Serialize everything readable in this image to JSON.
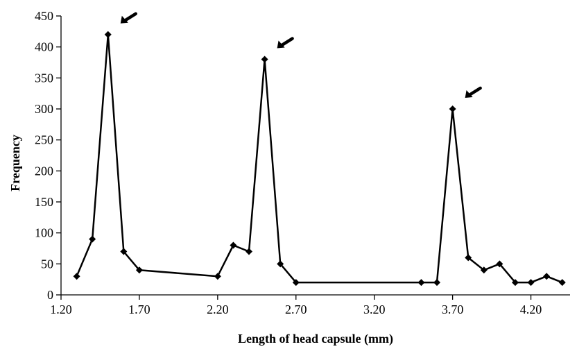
{
  "chart_data": {
    "type": "line",
    "title": "",
    "xlabel": "Length of head capsule (mm)",
    "ylabel": "Frequency",
    "xlim": [
      1.2,
      4.45
    ],
    "ylim": [
      0,
      450
    ],
    "x_ticks": [
      "1.20",
      "1.70",
      "2.20",
      "2.70",
      "3.20",
      "3.70",
      "4.20"
    ],
    "x_tick_values": [
      1.2,
      1.7,
      2.2,
      2.7,
      3.2,
      3.7,
      4.2
    ],
    "y_ticks": [
      "0",
      "50",
      "100",
      "150",
      "200",
      "250",
      "300",
      "350",
      "400",
      "450"
    ],
    "y_tick_values": [
      0,
      50,
      100,
      150,
      200,
      250,
      300,
      350,
      400,
      450
    ],
    "grid": false,
    "legend": "none",
    "marker": "diamond",
    "line_color": "#000000",
    "series": [
      {
        "x": [
          1.3,
          1.4,
          1.5,
          1.6,
          1.7,
          2.2,
          2.3,
          2.4,
          2.5,
          2.6,
          2.7,
          3.5,
          3.6,
          3.7,
          3.8,
          3.9,
          4.0,
          4.1,
          4.2,
          4.3,
          4.4
        ],
        "y": [
          30,
          90,
          420,
          70,
          40,
          30,
          80,
          70,
          380,
          50,
          20,
          20,
          20,
          300,
          60,
          40,
          50,
          20,
          20,
          30,
          20
        ]
      }
    ],
    "annotations": [
      {
        "type": "arrow",
        "x": 1.5,
        "y": 420
      },
      {
        "type": "arrow",
        "x": 2.5,
        "y": 380
      },
      {
        "type": "arrow",
        "x": 3.7,
        "y": 300
      }
    ]
  }
}
